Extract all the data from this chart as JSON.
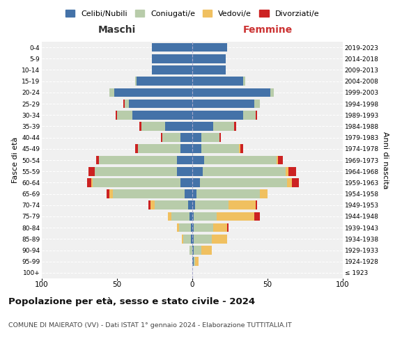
{
  "age_groups": [
    "100+",
    "95-99",
    "90-94",
    "85-89",
    "80-84",
    "75-79",
    "70-74",
    "65-69",
    "60-64",
    "55-59",
    "50-54",
    "45-49",
    "40-44",
    "35-39",
    "30-34",
    "25-29",
    "20-24",
    "15-19",
    "10-14",
    "5-9",
    "0-4"
  ],
  "birth_years": [
    "≤ 1923",
    "1924-1928",
    "1929-1933",
    "1934-1938",
    "1939-1943",
    "1944-1948",
    "1949-1953",
    "1954-1958",
    "1959-1963",
    "1964-1968",
    "1969-1973",
    "1974-1978",
    "1979-1983",
    "1984-1988",
    "1989-1993",
    "1994-1998",
    "1999-2003",
    "2004-2008",
    "2009-2013",
    "2014-2018",
    "2019-2023"
  ],
  "colors": {
    "celibi": "#4472a8",
    "coniugati": "#b8ccaa",
    "vedovi": "#f0c060",
    "divorziati": "#cc2222"
  },
  "males": {
    "celibi": [
      0,
      0,
      0,
      1,
      1,
      2,
      3,
      5,
      8,
      10,
      10,
      8,
      8,
      18,
      40,
      42,
      52,
      37,
      27,
      27,
      27
    ],
    "coniugati": [
      0,
      0,
      2,
      5,
      8,
      12,
      22,
      48,
      58,
      55,
      52,
      28,
      12,
      16,
      10,
      3,
      3,
      1,
      0,
      0,
      0
    ],
    "vedovi": [
      0,
      0,
      0,
      1,
      1,
      2,
      3,
      2,
      1,
      0,
      0,
      0,
      0,
      0,
      0,
      0,
      0,
      0,
      0,
      0,
      0
    ],
    "divorziati": [
      0,
      0,
      0,
      0,
      0,
      0,
      1,
      2,
      3,
      4,
      2,
      2,
      1,
      1,
      1,
      1,
      0,
      0,
      0,
      0,
      0
    ]
  },
  "females": {
    "celibi": [
      0,
      1,
      1,
      1,
      1,
      1,
      2,
      3,
      5,
      7,
      8,
      6,
      6,
      14,
      34,
      41,
      52,
      34,
      22,
      22,
      23
    ],
    "coniugati": [
      0,
      1,
      5,
      12,
      13,
      15,
      22,
      42,
      58,
      55,
      48,
      25,
      12,
      14,
      8,
      4,
      2,
      1,
      0,
      0,
      0
    ],
    "vedovi": [
      0,
      2,
      7,
      10,
      9,
      25,
      18,
      5,
      3,
      2,
      1,
      1,
      0,
      0,
      0,
      0,
      0,
      0,
      0,
      0,
      0
    ],
    "divorziati": [
      0,
      0,
      0,
      0,
      1,
      4,
      1,
      0,
      5,
      5,
      3,
      2,
      1,
      1,
      1,
      0,
      0,
      0,
      0,
      0,
      0
    ]
  },
  "title": "Popolazione per età, sesso e stato civile - 2024",
  "subtitle": "COMUNE DI MAIERATO (VV) - Dati ISTAT 1° gennaio 2024 - Elaborazione TUTTITALIA.IT",
  "xlabel_left": "Maschi",
  "xlabel_right": "Femmine",
  "ylabel_left": "Fasce di età",
  "ylabel_right": "Anni di nascita",
  "xlim": 100,
  "legend_labels": [
    "Celibi/Nubili",
    "Coniugati/e",
    "Vedovi/e",
    "Divorziati/e"
  ],
  "background_color": "#ffffff"
}
